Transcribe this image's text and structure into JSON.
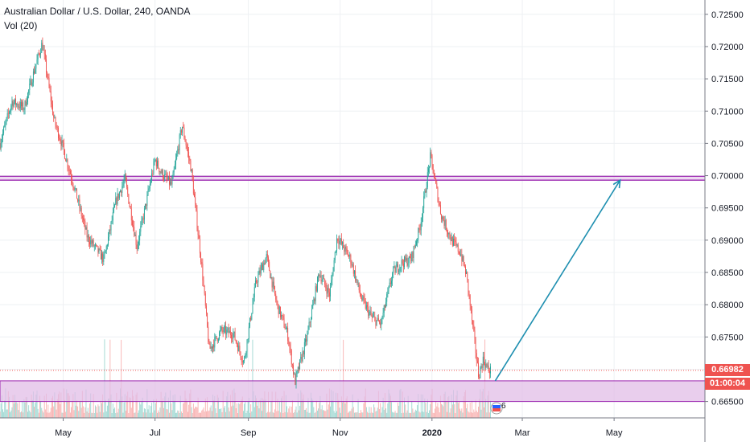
{
  "header": {
    "title": "Australian Dollar / U.S. Dollar, 240, OANDA",
    "indicator": "Vol (20)"
  },
  "price_badge": {
    "last_price": "0.66982",
    "countdown": "01:00:04",
    "last_color": "#ef5350",
    "countdown_color": "#ef5350"
  },
  "event_flag": {
    "count": "6"
  },
  "colors": {
    "up": "#26a69a",
    "down": "#ef5350",
    "resistance": "#9c27b0",
    "support_zone": "#e1bee7",
    "arrow": "#1e8fb0"
  },
  "chart_data": {
    "type": "candlestick",
    "title": "Australian Dollar / U.S. Dollar, 240, OANDA",
    "y_ticks": [
      "0.72500",
      "0.72000",
      "0.71500",
      "0.71000",
      "0.70500",
      "0.70000",
      "0.69500",
      "0.69000",
      "0.68500",
      "0.68000",
      "0.67500",
      "0.67000",
      "0.66500"
    ],
    "x_ticks": [
      "May",
      "Jul",
      "Sep",
      "Nov",
      "2020",
      "Mar",
      "May"
    ],
    "ylim": [
      0.6625,
      0.7265
    ],
    "x_range": [
      "2019-03-20",
      "2020-06-25"
    ],
    "price_path": [
      [
        "2019-03-20",
        0.705
      ],
      [
        "2019-03-28",
        0.7115
      ],
      [
        "2019-04-05",
        0.7105
      ],
      [
        "2019-04-12",
        0.7165
      ],
      [
        "2019-04-17",
        0.7205
      ],
      [
        "2019-04-25",
        0.7085
      ],
      [
        "2019-04-30",
        0.705
      ],
      [
        "2019-05-08",
        0.6985
      ],
      [
        "2019-05-17",
        0.6905
      ],
      [
        "2019-05-28",
        0.687
      ],
      [
        "2019-06-05",
        0.696
      ],
      [
        "2019-06-11",
        0.6995
      ],
      [
        "2019-06-19",
        0.689
      ],
      [
        "2019-06-24",
        0.6945
      ],
      [
        "2019-07-01",
        0.7025
      ],
      [
        "2019-07-05",
        0.7005
      ],
      [
        "2019-07-12",
        0.6985
      ],
      [
        "2019-07-19",
        0.7078
      ],
      [
        "2019-07-25",
        0.701
      ],
      [
        "2019-08-01",
        0.686
      ],
      [
        "2019-08-06",
        0.673
      ],
      [
        "2019-08-14",
        0.676
      ],
      [
        "2019-08-22",
        0.6755
      ],
      [
        "2019-08-29",
        0.671
      ],
      [
        "2019-09-06",
        0.6835
      ],
      [
        "2019-09-13",
        0.6875
      ],
      [
        "2019-09-20",
        0.68
      ],
      [
        "2019-09-27",
        0.6755
      ],
      [
        "2019-10-02",
        0.668
      ],
      [
        "2019-10-10",
        0.675
      ],
      [
        "2019-10-18",
        0.685
      ],
      [
        "2019-10-25",
        0.6815
      ],
      [
        "2019-10-30",
        0.6905
      ],
      [
        "2019-11-08",
        0.687
      ],
      [
        "2019-11-15",
        0.681
      ],
      [
        "2019-11-22",
        0.678
      ],
      [
        "2019-11-28",
        0.677
      ],
      [
        "2019-12-06",
        0.685
      ],
      [
        "2019-12-12",
        0.6865
      ],
      [
        "2019-12-18",
        0.687
      ],
      [
        "2019-12-24",
        0.692
      ],
      [
        "2019-12-31",
        0.703
      ],
      [
        "2020-01-07",
        0.694
      ],
      [
        "2020-01-14",
        0.69
      ],
      [
        "2020-01-20",
        0.688
      ],
      [
        "2020-01-24",
        0.6845
      ],
      [
        "2020-02-01",
        0.669
      ],
      [
        "2020-02-04",
        0.6715
      ],
      [
        "2020-02-07",
        0.67
      ],
      [
        "2020-02-09",
        0.6698
      ]
    ],
    "resistance_line": [
      0.6993,
      0.6999
    ],
    "support_zone": [
      0.665,
      0.6682
    ],
    "current_price_line": 0.66982,
    "projection_arrow": {
      "from": [
        "2020-02-12",
        0.6682
      ],
      "to": [
        "2020-05-05",
        0.6993
      ]
    },
    "volume_pane": {
      "label": "Vol (20)"
    }
  }
}
